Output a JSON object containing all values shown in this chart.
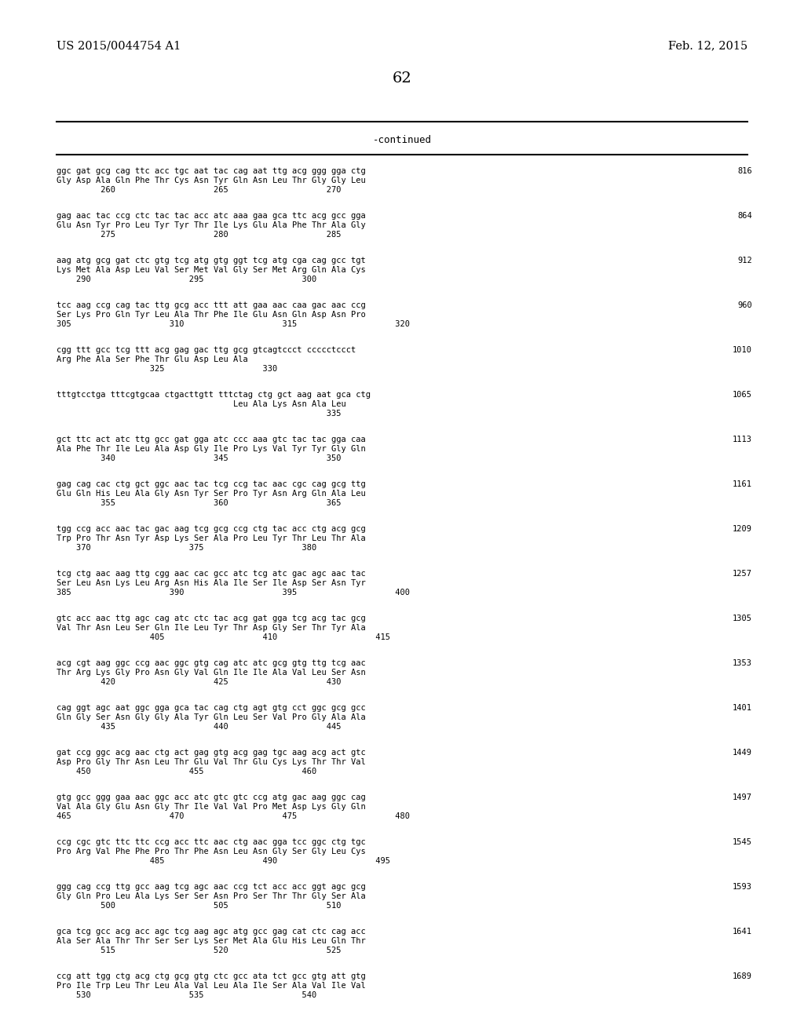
{
  "header_left": "US 2015/0044754 A1",
  "header_right": "Feb. 12, 2015",
  "page_number": "62",
  "continued_label": "-continued",
  "background_color": "#ffffff",
  "text_color": "#000000",
  "font_size_header": 10.5,
  "font_size_body": 8.5,
  "font_size_page": 13,
  "lines": [
    {
      "dna": "ggc gat gcg cag ttc acc tgc aat tac cag aat ttg acg ggg gga ctg",
      "aa": "Gly Asp Ala Gln Phe Thr Cys Asn Tyr Gln Asn Leu Thr Gly Gly Leu",
      "nums": "         260                    265                    270",
      "num_right": "816"
    },
    {
      "dna": "gag aac tac ccg ctc tac tac acc atc aaa gaa gca ttc acg gcc gga",
      "aa": "Glu Asn Tyr Pro Leu Tyr Tyr Thr Ile Lys Glu Ala Phe Thr Ala Gly",
      "nums": "         275                    280                    285",
      "num_right": "864"
    },
    {
      "dna": "aag atg gcg gat ctc gtg tcg atg gtg ggt tcg atg cga cag gcc tgt",
      "aa": "Lys Met Ala Asp Leu Val Ser Met Val Gly Ser Met Arg Gln Ala Cys",
      "nums": "    290                    295                    300",
      "num_right": "912"
    },
    {
      "dna": "tcc aag ccg cag tac ttg gcg acc ttt att gaa aac caa gac aac ccg",
      "aa": "Ser Lys Pro Gln Tyr Leu Ala Thr Phe Ile Glu Asn Gln Asp Asn Pro",
      "nums": "305                    310                    315                    320",
      "num_right": "960"
    },
    {
      "dna": "cgg ttt gcc tcg ttt acg gag gac ttg gcg gtcagtccct ccccctccct",
      "aa": "Arg Phe Ala Ser Phe Thr Glu Asp Leu Ala",
      "nums": "                   325                    330",
      "num_right": "1010"
    },
    {
      "dna": "tttgtcctga tttcgtgcaa ctgacttgtt tttctag ctg gct aag aat gca ctg",
      "aa": "                                    Leu Ala Lys Asn Ala Leu",
      "nums": "                                                       335",
      "num_right": "1065"
    },
    {
      "dna": "gct ttc act atc ttg gcc gat gga atc ccc aaa gtc tac tac gga caa",
      "aa": "Ala Phe Thr Ile Leu Ala Asp Gly Ile Pro Lys Val Tyr Tyr Gly Gln",
      "nums": "         340                    345                    350",
      "num_right": "1113"
    },
    {
      "dna": "gag cag cac ctg gct ggc aac tac tcg ccg tac aac cgc cag gcg ttg",
      "aa": "Glu Gln His Leu Ala Gly Asn Tyr Ser Pro Tyr Asn Arg Gln Ala Leu",
      "nums": "         355                    360                    365",
      "num_right": "1161"
    },
    {
      "dna": "tgg ccg acc aac tac gac aag tcg gcg ccg ctg tac acc ctg acg gcg",
      "aa": "Trp Pro Thr Asn Tyr Asp Lys Ser Ala Pro Leu Tyr Thr Leu Thr Ala",
      "nums": "    370                    375                    380",
      "num_right": "1209"
    },
    {
      "dna": "tcg ctg aac aag ttg cgg aac cac gcc atc tcg atc gac agc aac tac",
      "aa": "Ser Leu Asn Lys Leu Arg Asn His Ala Ile Ser Ile Asp Ser Asn Tyr",
      "nums": "385                    390                    395                    400",
      "num_right": "1257"
    },
    {
      "dna": "gtc acc aac ttg agc cag atc ctc tac acg gat gga tcg acg tac gcg",
      "aa": "Val Thr Asn Leu Ser Gln Ile Leu Tyr Thr Asp Gly Ser Thr Tyr Ala",
      "nums": "                   405                    410                    415",
      "num_right": "1305"
    },
    {
      "dna": "acg cgt aag ggc ccg aac ggc gtg cag atc atc gcg gtg ttg tcg aac",
      "aa": "Thr Arg Lys Gly Pro Asn Gly Val Gln Ile Ile Ala Val Leu Ser Asn",
      "nums": "         420                    425                    430",
      "num_right": "1353"
    },
    {
      "dna": "cag ggt agc aat ggc gga gca tac cag ctg agt gtg cct ggc gcg gcc",
      "aa": "Gln Gly Ser Asn Gly Gly Ala Tyr Gln Leu Ser Val Pro Gly Ala Ala",
      "nums": "         435                    440                    445",
      "num_right": "1401"
    },
    {
      "dna": "gat ccg ggc acg aac ctg act gag gtg acg gag tgc aag acg act gtc",
      "aa": "Asp Pro Gly Thr Asn Leu Thr Glu Val Thr Glu Cys Lys Thr Thr Val",
      "nums": "    450                    455                    460",
      "num_right": "1449"
    },
    {
      "dna": "gtg gcc ggg gaa aac ggc acc atc gtc gtc ccg atg gac aag ggc cag",
      "aa": "Val Ala Gly Glu Asn Gly Thr Ile Val Val Pro Met Asp Lys Gly Gln",
      "nums": "465                    470                    475                    480",
      "num_right": "1497"
    },
    {
      "dna": "ccg cgc gtc ttc ttc ccg acc ttc aac ctg aac gga tcc ggc ctg tgc",
      "aa": "Pro Arg Val Phe Phe Pro Thr Phe Asn Leu Asn Gly Ser Gly Leu Cys",
      "nums": "                   485                    490                    495",
      "num_right": "1545"
    },
    {
      "dna": "ggg cag ccg ttg gcc aag tcg agc aac ccg tct acc acc ggt agc gcg",
      "aa": "Gly Gln Pro Leu Ala Lys Ser Ser Asn Pro Ser Thr Thr Gly Ser Ala",
      "nums": "         500                    505                    510",
      "num_right": "1593"
    },
    {
      "dna": "gca tcg gcc acg acc agc tcg aag agc atg gcc gag cat ctc cag acc",
      "aa": "Ala Ser Ala Thr Thr Ser Ser Lys Ser Met Ala Glu His Leu Gln Thr",
      "nums": "         515                    520                    525",
      "num_right": "1641"
    },
    {
      "dna": "ccg att tgg ctg acg ctg gcg gtg ctc gcc ata tct gcc gtg att gtg",
      "aa": "Pro Ile Trp Leu Thr Leu Ala Val Leu Ala Ile Ser Ala Val Ile Val",
      "nums": "    530                    535                    540",
      "num_right": "1689"
    }
  ]
}
